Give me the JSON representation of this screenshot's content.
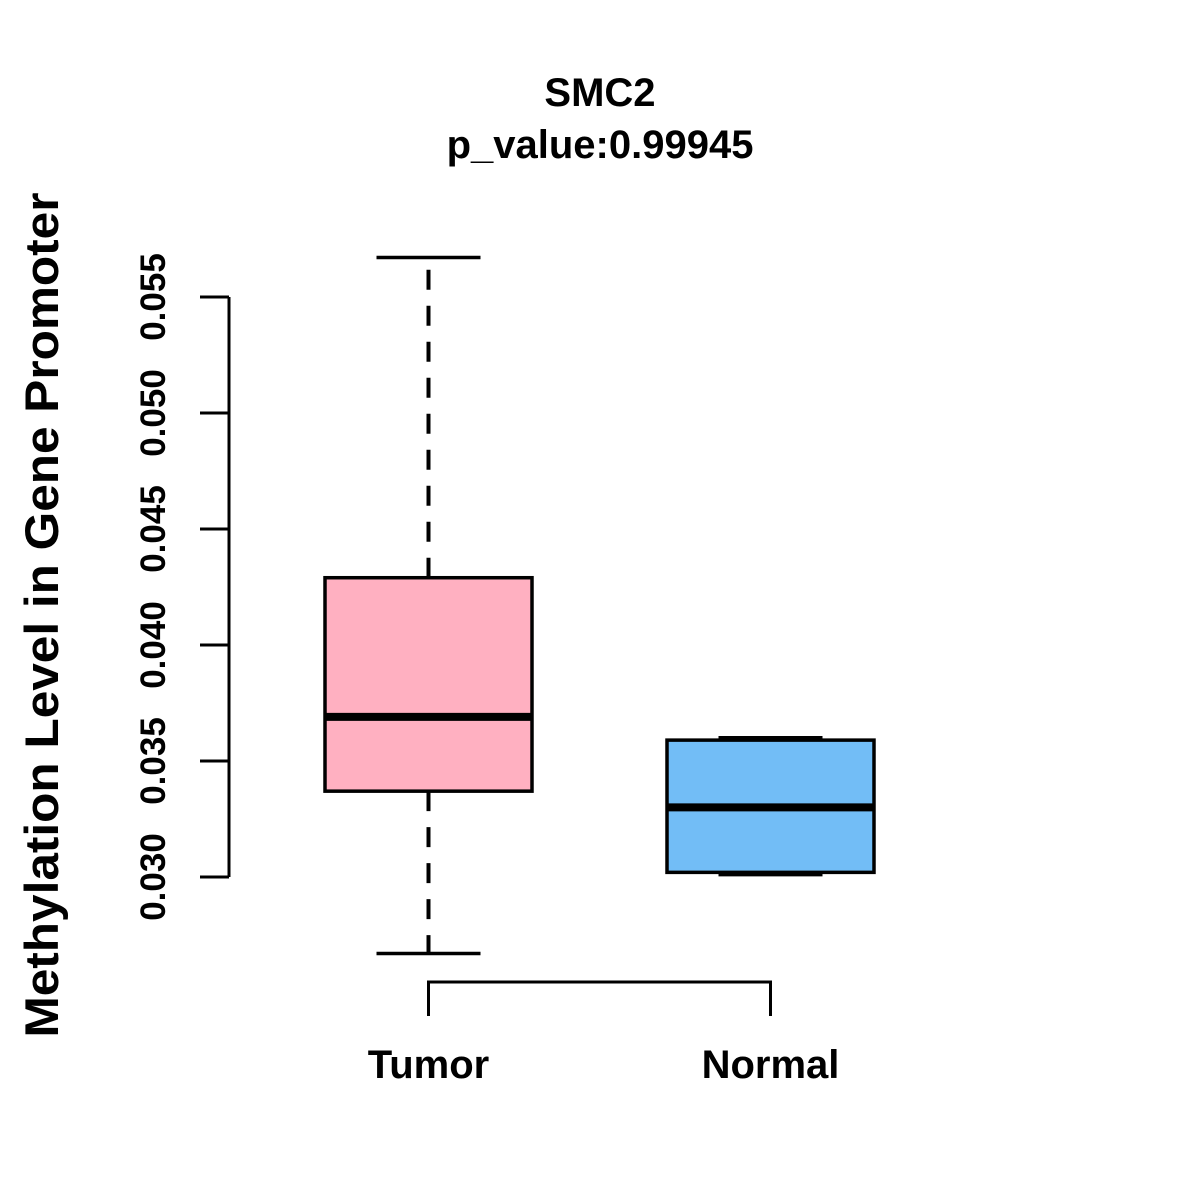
{
  "chart_data": {
    "type": "boxplot",
    "title": "SMC2",
    "subtitle": "p_value:0.99945",
    "ylabel": "Methylation Level in Gene Promoter",
    "xlabel": "",
    "categories": [
      "Tumor",
      "Normal"
    ],
    "y_ticks": [
      0.03,
      0.035,
      0.04,
      0.045,
      0.05,
      0.055
    ],
    "y_tick_labels": [
      "0.030",
      "0.035",
      "0.040",
      "0.045",
      "0.050",
      "0.055"
    ],
    "axis_range": [
      0.03,
      0.055
    ],
    "grid": false,
    "legend": "none",
    "orientation": "vertical",
    "series": [
      {
        "name": "Tumor",
        "fill_color": "#FFB0C1",
        "whisker_low": 0.0267,
        "q1": 0.0337,
        "median": 0.0369,
        "q3": 0.0429,
        "whisker_high": 0.0567,
        "outliers": []
      },
      {
        "name": "Normal",
        "fill_color": "#72BDF6",
        "whisker_low": 0.0301,
        "q1": 0.0302,
        "median": 0.033,
        "q3": 0.0359,
        "whisker_high": 0.036,
        "outliers": []
      }
    ],
    "colors": {
      "tumor_fill": "#FFB0C1",
      "normal_fill": "#72BDF6",
      "stroke": "#000000",
      "background": "#FFFFFF"
    }
  }
}
